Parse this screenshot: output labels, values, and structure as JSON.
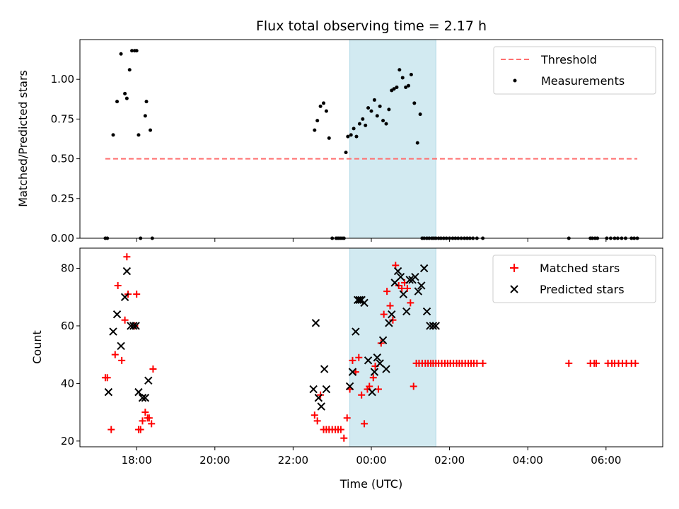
{
  "chart_data": {
    "type": "scatter",
    "title": "Flux total observing time = 2.17 h",
    "xlabel": "Time (UTC)",
    "x_unit": "hours since 00:00 UTC",
    "xlim": [
      -7.45,
      7.45
    ],
    "x_ticks": [
      {
        "value": -6,
        "label": "18:00"
      },
      {
        "value": -4,
        "label": "20:00"
      },
      {
        "value": -2,
        "label": "22:00"
      },
      {
        "value": 0,
        "label": "00:00"
      },
      {
        "value": 2,
        "label": "02:00"
      },
      {
        "value": 4,
        "label": "04:00"
      },
      {
        "value": 6,
        "label": "06:00"
      }
    ],
    "observing_window": [
      -0.55,
      1.65
    ],
    "window_color": "#add8e6",
    "panels": [
      {
        "id": "ratio",
        "ylabel": "Matched/Predicted stars",
        "ylim": [
          0,
          1.25
        ],
        "y_ticks": [
          "0.00",
          "0.25",
          "0.50",
          "0.75",
          "1.00"
        ],
        "threshold": {
          "name": "Threshold",
          "value": 0.5,
          "x_range": [
            -6.8,
            6.8
          ],
          "color": "#ff6f6f"
        },
        "series": [
          {
            "name": "Measurements",
            "marker": "dot",
            "color": "#000000",
            "x": [
              -6.8,
              -6.75,
              -6.6,
              -6.5,
              -6.4,
              -6.3,
              -6.25,
              -6.18,
              -6.12,
              -6.05,
              -6.0,
              -5.95,
              -5.9,
              -5.78,
              -5.75,
              -5.65,
              -5.6,
              -1.45,
              -1.38,
              -1.3,
              -1.22,
              -1.15,
              -1.08,
              -1.0,
              -0.9,
              -0.85,
              -0.8,
              -0.75,
              -0.7,
              -0.65,
              -0.6,
              -0.52,
              -0.45,
              -0.38,
              -0.3,
              -0.22,
              -0.15,
              -0.08,
              0.0,
              0.08,
              0.15,
              0.22,
              0.3,
              0.38,
              0.45,
              0.52,
              0.58,
              0.65,
              0.72,
              0.8,
              0.88,
              0.95,
              1.02,
              1.1,
              1.18,
              1.25,
              1.3,
              1.35,
              1.42,
              1.48,
              1.55,
              1.6,
              1.65,
              1.72,
              1.78,
              1.85,
              1.92,
              2.0,
              2.08,
              2.15,
              2.22,
              2.3,
              2.38,
              2.45,
              2.52,
              2.6,
              2.7,
              2.85,
              5.05,
              5.6,
              5.65,
              5.72,
              5.78,
              6.02,
              6.12,
              6.22,
              6.3,
              6.4,
              6.5,
              6.65,
              6.72,
              6.8
            ],
            "y": [
              0.0,
              0.0,
              0.65,
              0.86,
              1.16,
              0.91,
              0.88,
              1.06,
              1.18,
              1.18,
              1.18,
              0.65,
              0.0,
              0.77,
              0.86,
              0.68,
              0.0,
              0.68,
              0.74,
              0.83,
              0.85,
              0.8,
              0.63,
              0.0,
              0.0,
              0.0,
              0.0,
              0.0,
              0.0,
              0.54,
              0.64,
              0.65,
              0.69,
              0.64,
              0.72,
              0.75,
              0.71,
              0.82,
              0.8,
              0.87,
              0.77,
              0.83,
              0.74,
              0.72,
              0.81,
              0.93,
              0.94,
              0.95,
              1.06,
              1.01,
              0.95,
              0.96,
              1.03,
              0.85,
              0.6,
              0.78,
              0.0,
              0.0,
              0.0,
              0.0,
              0.0,
              0.0,
              0.0,
              0.0,
              0.0,
              0.0,
              0.0,
              0.0,
              0.0,
              0.0,
              0.0,
              0.0,
              0.0,
              0.0,
              0.0,
              0.0,
              0.0,
              0.0,
              0.0,
              0.0,
              0.0,
              0.0,
              0.0,
              0.0,
              0.0,
              0.0,
              0.0,
              0.0,
              0.0,
              0.0,
              0.0,
              0.0
            ]
          }
        ]
      },
      {
        "id": "count",
        "ylabel": "Count",
        "ylim": [
          18,
          87
        ],
        "y_ticks": [
          "20",
          "40",
          "60",
          "80"
        ],
        "series": [
          {
            "name": "Matched stars",
            "marker": "plus",
            "color": "#ff0000",
            "x": [
              -6.8,
              -6.75,
              -6.65,
              -6.55,
              -6.48,
              -6.38,
              -6.3,
              -6.25,
              -6.22,
              -6.05,
              -6.0,
              -5.95,
              -5.9,
              -5.85,
              -5.78,
              -5.72,
              -5.68,
              -5.62,
              -5.58,
              -1.45,
              -1.38,
              -1.3,
              -1.22,
              -1.15,
              -1.08,
              -1.0,
              -0.92,
              -0.85,
              -0.78,
              -0.7,
              -0.62,
              -0.55,
              -0.48,
              -0.4,
              -0.32,
              -0.25,
              -0.18,
              -0.1,
              -0.05,
              0.05,
              0.1,
              0.18,
              0.25,
              0.32,
              0.4,
              0.48,
              0.55,
              0.62,
              0.7,
              0.78,
              0.85,
              0.92,
              1.0,
              1.08,
              1.15,
              1.22,
              1.3,
              1.38,
              1.45,
              1.52,
              1.58,
              1.65,
              1.72,
              1.8,
              1.88,
              1.95,
              2.02,
              2.1,
              2.18,
              2.25,
              2.32,
              2.4,
              2.48,
              2.55,
              2.62,
              2.7,
              2.85,
              5.05,
              5.6,
              5.7,
              5.75,
              6.05,
              6.15,
              6.22,
              6.32,
              6.42,
              6.52,
              6.65,
              6.75
            ],
            "y": [
              42,
              42,
              24,
              50,
              74,
              48,
              62,
              84,
              71,
              60,
              71,
              24,
              24,
              27,
              30,
              28,
              28,
              26,
              45,
              29,
              27,
              36,
              24,
              24,
              24,
              24,
              24,
              24,
              24,
              21,
              28,
              38,
              48,
              44,
              49,
              36,
              26,
              38,
              39,
              42,
              46,
              38,
              54,
              64,
              72,
              67,
              62,
              81,
              74,
              73,
              75,
              73,
              68,
              39,
              47,
              47,
              47,
              47,
              47,
              47,
              47,
              47,
              47,
              47,
              47,
              47,
              47,
              47,
              47,
              47,
              47,
              47,
              47,
              47,
              47,
              47,
              47,
              47,
              47,
              47,
              47,
              47,
              47,
              47,
              47,
              47,
              47,
              47,
              47
            ]
          },
          {
            "name": "Predicted stars",
            "marker": "x",
            "color": "#000000",
            "x": [
              -6.72,
              -6.6,
              -6.5,
              -6.4,
              -6.3,
              -6.25,
              -6.15,
              -6.08,
              -6.02,
              -5.95,
              -5.85,
              -5.78,
              -5.7,
              -1.48,
              -1.42,
              -1.35,
              -1.28,
              -1.2,
              -1.15,
              -0.55,
              -0.48,
              -0.4,
              -0.35,
              -0.3,
              -0.25,
              -0.18,
              -0.08,
              0.02,
              0.08,
              0.15,
              0.22,
              0.3,
              0.38,
              0.45,
              0.52,
              0.6,
              0.68,
              0.75,
              0.82,
              0.9,
              0.98,
              1.05,
              1.12,
              1.2,
              1.28,
              1.35,
              1.42,
              1.5,
              1.58,
              1.65
            ],
            "y": [
              37,
              58,
              64,
              53,
              70,
              79,
              60,
              60,
              60,
              37,
              35,
              35,
              41,
              38,
              61,
              35,
              32,
              45,
              38,
              39,
              44,
              58,
              69,
              69,
              69,
              68,
              48,
              37,
              44,
              49,
              47,
              55,
              45,
              61,
              64,
              75,
              79,
              77,
              71,
              65,
              76,
              76,
              77,
              72,
              74,
              80,
              65,
              60,
              60,
              60
            ]
          }
        ]
      }
    ]
  }
}
